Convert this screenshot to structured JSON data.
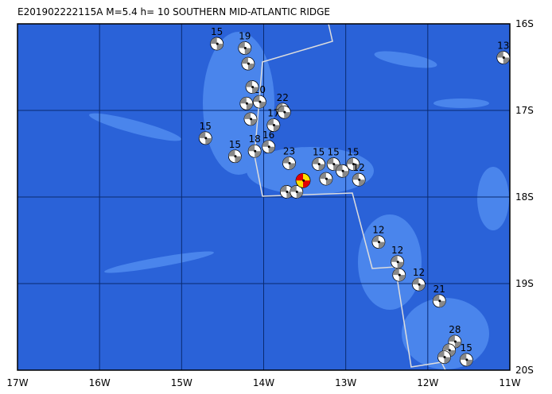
{
  "title": "E201902222115A M=5.4 h= 10 SOUTHERN MID-ATLANTIC RIDGE",
  "xlim": [
    -17,
    -11
  ],
  "ylim": [
    -20,
    -16
  ],
  "xticks": [
    {
      "value": -17,
      "label": "17W"
    },
    {
      "value": -16,
      "label": "16W"
    },
    {
      "value": -15,
      "label": "15W"
    },
    {
      "value": -14,
      "label": "14W"
    },
    {
      "value": -13,
      "label": "13W"
    },
    {
      "value": -12,
      "label": "12W"
    },
    {
      "value": -11,
      "label": "11W"
    }
  ],
  "yticks": [
    {
      "value": -16,
      "label": "16S"
    },
    {
      "value": -17,
      "label": "17S"
    },
    {
      "value": -18,
      "label": "18S"
    },
    {
      "value": -19,
      "label": "19S"
    },
    {
      "value": -20,
      "label": "20S"
    }
  ],
  "main_event": {
    "lon": -13.52,
    "lat": -17.81
  },
  "events": [
    {
      "lon": -14.57,
      "lat": -16.23,
      "label": "15"
    },
    {
      "lon": -14.23,
      "lat": -16.28,
      "label": "19"
    },
    {
      "lon": -11.08,
      "lat": -16.39,
      "label": "13"
    },
    {
      "lon": -13.77,
      "lat": -16.99,
      "label": "22"
    },
    {
      "lon": -14.05,
      "lat": -16.9,
      "label": "20"
    },
    {
      "lon": -13.88,
      "lat": -17.17,
      "label": "17"
    },
    {
      "lon": -14.71,
      "lat": -17.32,
      "label": "15"
    },
    {
      "lon": -14.35,
      "lat": -17.53,
      "label": "15"
    },
    {
      "lon": -14.11,
      "lat": -17.47,
      "label": "18"
    },
    {
      "lon": -13.94,
      "lat": -17.42,
      "label": "16"
    },
    {
      "lon": -13.69,
      "lat": -17.61,
      "label": "23"
    },
    {
      "lon": -13.33,
      "lat": -17.62,
      "label": "15"
    },
    {
      "lon": -13.15,
      "lat": -17.62,
      "label": "15"
    },
    {
      "lon": -12.91,
      "lat": -17.62,
      "label": "15"
    },
    {
      "lon": -12.84,
      "lat": -17.8,
      "label": "12"
    },
    {
      "lon": -12.6,
      "lat": -18.52,
      "label": "12"
    },
    {
      "lon": -12.37,
      "lat": -18.75,
      "label": "12"
    },
    {
      "lon": -12.11,
      "lat": -19.01,
      "label": "12"
    },
    {
      "lon": -11.86,
      "lat": -19.2,
      "label": "21"
    },
    {
      "lon": -11.67,
      "lat": -19.67,
      "label": "28"
    },
    {
      "lon": -11.53,
      "lat": -19.88,
      "label": "15"
    },
    {
      "lon": -14.19,
      "lat": -16.46,
      "label": null
    },
    {
      "lon": -14.14,
      "lat": -16.73,
      "label": null
    },
    {
      "lon": -14.21,
      "lat": -16.92,
      "label": null
    },
    {
      "lon": -14.16,
      "lat": -17.1,
      "label": null
    },
    {
      "lon": -13.75,
      "lat": -17.02,
      "label": null
    },
    {
      "lon": -13.72,
      "lat": -17.94,
      "label": null
    },
    {
      "lon": -13.6,
      "lat": -17.94,
      "label": null
    },
    {
      "lon": -13.24,
      "lat": -17.79,
      "label": null
    },
    {
      "lon": -13.04,
      "lat": -17.7,
      "label": null
    },
    {
      "lon": -12.35,
      "lat": -18.9,
      "label": null
    },
    {
      "lon": -11.74,
      "lat": -19.77,
      "label": null
    },
    {
      "lon": -11.8,
      "lat": -19.85,
      "label": null
    }
  ]
}
